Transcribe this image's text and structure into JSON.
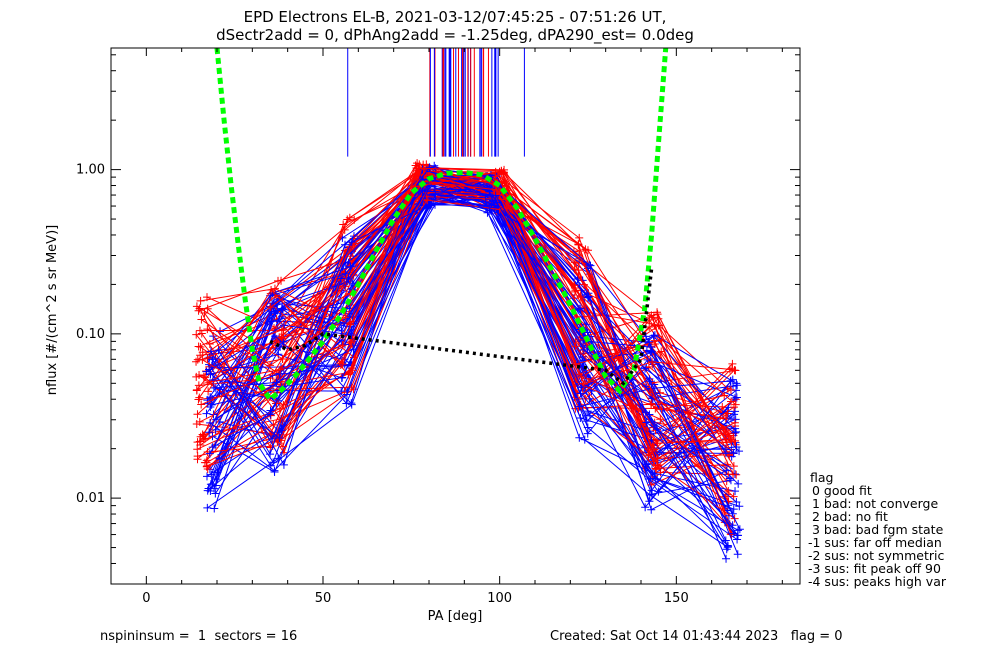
{
  "title_line1": "EPD Electrons EL-B, 2021-03-12/07:45:25 - 07:51:26 UT,",
  "title_line2": "dSectr2add = 0, dPhAng2add = -1.25deg, dPA290_est=   0.0deg",
  "footer": {
    "left": "nspininsum =  1  sectors = 16",
    "right": "Created: Sat Oct 14 01:43:44 2023   flag = 0"
  },
  "legend": {
    "title": "flag",
    "items": [
      " 0 good fit",
      " 1 bad: not converge",
      " 2 bad: no fit",
      " 3 bad: bad fgm state",
      "-1 sus: far off median",
      "-2 sus: not symmetric",
      "-3 sus: fit peak off 90",
      "-4 sus: peaks high var"
    ]
  },
  "chart_data": {
    "type": "line",
    "xlabel": "PA [deg]",
    "ylabel": "nflux [#/(cm^2 s sr MeV)]",
    "xlim": [
      -10,
      185
    ],
    "ylim": [
      0.003,
      5.5
    ],
    "yscale": "log",
    "x_ticks": [
      0,
      50,
      100,
      150
    ],
    "x_tick_labels": [
      "0",
      "50",
      "100",
      "150"
    ],
    "y_ticks": [
      0.01,
      0.1,
      1.0
    ],
    "y_tick_labels": [
      "0.01",
      "0.10",
      "1.00"
    ],
    "series": [
      {
        "color": "#00ff00",
        "style": "dashed",
        "x": [
          20,
          22,
          24,
          26,
          28,
          30,
          32,
          35,
          38,
          42,
          46,
          50,
          55,
          60,
          65,
          70,
          75,
          80,
          85,
          90,
          95,
          100,
          105,
          110,
          115,
          120,
          125,
          130,
          134,
          138,
          141,
          143,
          145,
          147
        ],
        "y": [
          5.5,
          2.0,
          0.8,
          0.35,
          0.16,
          0.08,
          0.05,
          0.04,
          0.045,
          0.055,
          0.07,
          0.09,
          0.13,
          0.2,
          0.32,
          0.5,
          0.72,
          0.88,
          0.95,
          0.96,
          0.93,
          0.8,
          0.58,
          0.38,
          0.24,
          0.15,
          0.09,
          0.055,
          0.045,
          0.06,
          0.14,
          0.4,
          1.5,
          5.5
        ]
      },
      {
        "color": "#000000",
        "style": "dotted",
        "x": [
          35,
          40,
          45,
          50,
          130,
          135,
          140,
          143
        ],
        "y": [
          0.09,
          0.08,
          0.085,
          0.1,
          0.06,
          0.05,
          0.07,
          0.25
        ]
      }
    ],
    "red_sweeps_example": {
      "color": "#ff0000",
      "x": [
        16,
        37,
        57,
        78,
        100,
        123,
        144,
        165
      ],
      "y": [
        0.05,
        0.06,
        0.15,
        0.85,
        0.75,
        0.12,
        0.04,
        0.02
      ]
    },
    "blue_sweeps_example": {
      "color": "#0000ff",
      "x": [
        19,
        37,
        57,
        80,
        98,
        124,
        143,
        166
      ],
      "y": [
        0.03,
        0.05,
        0.12,
        0.8,
        0.7,
        0.08,
        0.03,
        0.015
      ]
    }
  }
}
